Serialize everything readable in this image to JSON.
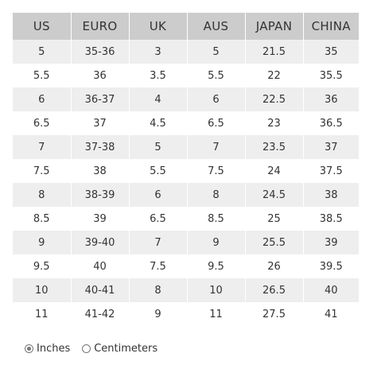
{
  "size_chart": {
    "headers": [
      "US",
      "EURO",
      "UK",
      "AUS",
      "JAPAN",
      "CHINA"
    ],
    "rows": [
      [
        "5",
        "35-36",
        "3",
        "5",
        "21.5",
        "35"
      ],
      [
        "5.5",
        "36",
        "3.5",
        "5.5",
        "22",
        "35.5"
      ],
      [
        "6",
        "36-37",
        "4",
        "6",
        "22.5",
        "36"
      ],
      [
        "6.5",
        "37",
        "4.5",
        "6.5",
        "23",
        "36.5"
      ],
      [
        "7",
        "37-38",
        "5",
        "7",
        "23.5",
        "37"
      ],
      [
        "7.5",
        "38",
        "5.5",
        "7.5",
        "24",
        "37.5"
      ],
      [
        "8",
        "38-39",
        "6",
        "8",
        "24.5",
        "38"
      ],
      [
        "8.5",
        "39",
        "6.5",
        "8.5",
        "25",
        "38.5"
      ],
      [
        "9",
        "39-40",
        "7",
        "9",
        "25.5",
        "39"
      ],
      [
        "9.5",
        "40",
        "7.5",
        "9.5",
        "26",
        "39.5"
      ],
      [
        "10",
        "40-41",
        "8",
        "10",
        "26.5",
        "40"
      ],
      [
        "11",
        "41-42",
        "9",
        "11",
        "27.5",
        "41"
      ]
    ]
  },
  "units": {
    "options": [
      {
        "label": "Inches",
        "selected": true
      },
      {
        "label": "Centimeters",
        "selected": false
      }
    ]
  },
  "colors": {
    "header_bg": "#cccccc",
    "shaded_row_bg": "#eeeeee",
    "text": "#333333"
  }
}
